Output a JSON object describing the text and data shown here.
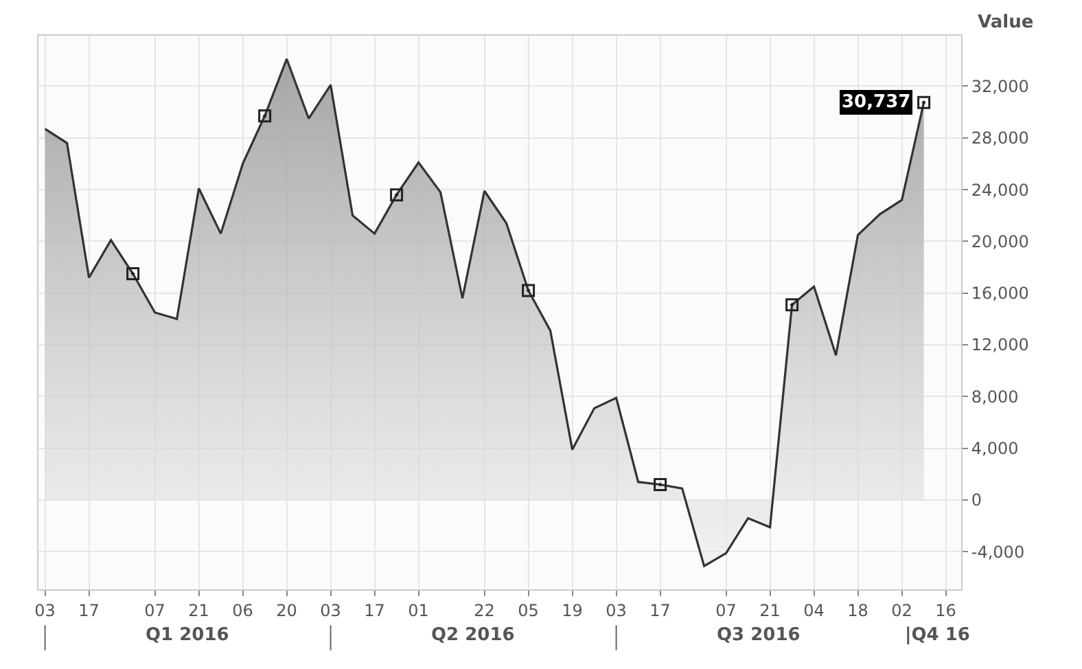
{
  "chart_data": {
    "type": "area",
    "ylabel": "Value",
    "categories": [
      "03",
      null,
      "17",
      null,
      null,
      "07",
      null,
      "21",
      null,
      "06",
      null,
      "20",
      null,
      "03",
      null,
      "17",
      null,
      "01",
      null,
      null,
      "22",
      null,
      "05",
      null,
      "19",
      null,
      "03",
      null,
      "17",
      null,
      null,
      "07",
      null,
      "21",
      null,
      "04",
      null,
      "18",
      null,
      "02",
      null,
      "16"
    ],
    "series": [
      {
        "color": "#333333",
        "values": [
          28700,
          27600,
          17200,
          20100,
          17500,
          14500,
          14000,
          24100,
          20600,
          26000,
          29700,
          34100,
          29500,
          32100,
          22000,
          20600,
          23600,
          26100,
          23800,
          15600,
          23900,
          21400,
          16200,
          13100,
          3900,
          7100,
          7900,
          1400,
          1200,
          900,
          -5100,
          -4100,
          -1400,
          -2100,
          15100,
          16500,
          11200,
          20500,
          22100,
          23200,
          30737,
          null
        ],
        "value_labels": [
          null,
          null,
          null,
          null,
          null,
          null,
          null,
          null,
          null,
          null,
          null,
          null,
          null,
          null,
          null,
          null,
          null,
          null,
          null,
          null,
          null,
          null,
          null,
          null,
          null,
          null,
          null,
          null,
          null,
          null,
          null,
          null,
          null,
          null,
          null,
          null,
          null,
          null,
          null,
          null,
          "30,737",
          null
        ]
      },
      {
        "type": "scatter",
        "color": "#222222",
        "marker": "square",
        "values": [
          null,
          null,
          null,
          null,
          17500,
          null,
          null,
          null,
          null,
          null,
          29700,
          null,
          null,
          null,
          null,
          null,
          23600,
          null,
          null,
          null,
          null,
          null,
          16200,
          null,
          null,
          null,
          null,
          null,
          1200,
          null,
          null,
          null,
          null,
          null,
          15100,
          null,
          null,
          null,
          null,
          null,
          30737,
          null
        ]
      }
    ],
    "ylim": [
      -6900,
      35900
    ],
    "yticks": [
      {
        "value": -4000,
        "label": "-4,000"
      },
      0,
      {
        "value": 4000,
        "label": "4,000"
      },
      {
        "value": 8000,
        "label": "8,000"
      },
      {
        "value": 12000,
        "label": "12,000"
      },
      {
        "value": 16000,
        "label": "16,000"
      },
      {
        "value": 20000,
        "label": "20,000"
      },
      {
        "value": 24000,
        "label": "24,000"
      },
      {
        "value": 28000,
        "label": "28,000"
      },
      {
        "value": 32000,
        "label": "32,000"
      }
    ],
    "grid": true,
    "line_style": "solid",
    "annotations": [
      "Q1 2016",
      "Q2 2016",
      "Q3 2016",
      "|Q4 16"
    ]
  }
}
